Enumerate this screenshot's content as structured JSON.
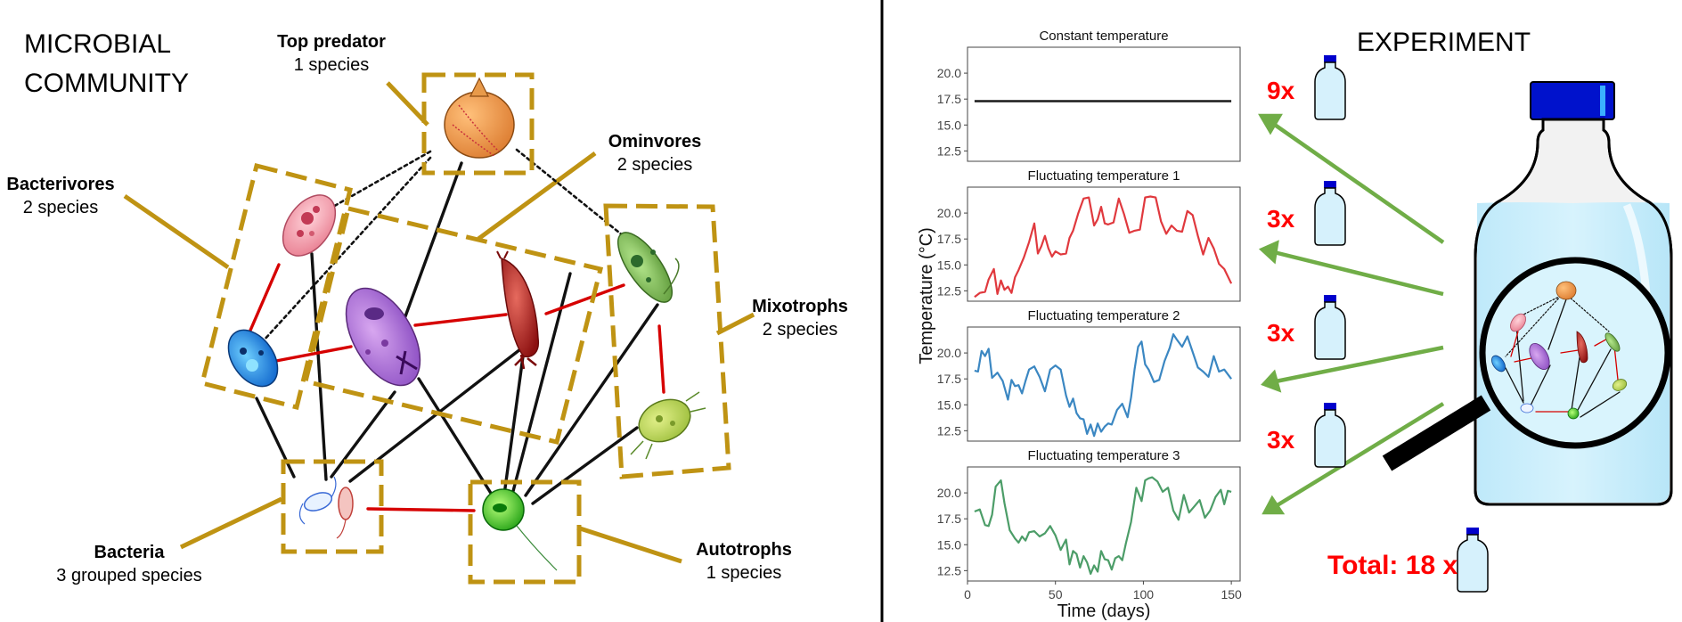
{
  "left": {
    "title_line1": "MICROBIAL",
    "title_line2": "COMMUNITY",
    "groups": {
      "top_predator": {
        "name": "Top predator",
        "count": "1 species"
      },
      "omnivores": {
        "name": "Ominvores",
        "count": "2 species"
      },
      "bacterivores": {
        "name": "Bacterivores",
        "count": "2 species"
      },
      "mixotrophs": {
        "name": "Mixotrophs",
        "count": "2 species"
      },
      "bacteria": {
        "name": "Bacteria",
        "count": "3 grouped species"
      },
      "autotrophs": {
        "name": "Autotrophs",
        "count": "1 species"
      }
    },
    "colors": {
      "group_box": "#bf9313",
      "link_black": "#111111",
      "link_red": "#d60000"
    }
  },
  "right": {
    "title": "EXPERIMENT",
    "replicates": [
      "9x",
      "3x",
      "3x",
      "3x"
    ],
    "total_label": "Total: 18 x",
    "colors": {
      "replicate_text": "#ff0000",
      "arrow": "#70ad47",
      "cap": "#0000cc",
      "bottle_liquid": "#cfeffc"
    }
  },
  "chart_data": {
    "type": "line",
    "ylabel": "Temperature (°C)",
    "xlabel": "Time (days)",
    "xlim": [
      0,
      155
    ],
    "ylim": [
      11.5,
      22.5
    ],
    "xticks": [
      "0",
      "50",
      "100",
      "150"
    ],
    "yticks": [
      "12.5",
      "15.0",
      "17.5",
      "20.0"
    ],
    "series": [
      {
        "name": "Constant temperature",
        "color": "#1a1a1a",
        "x": [
          4,
          150
        ],
        "y": [
          17.3,
          17.3
        ]
      },
      {
        "name": "Fluctuating temperature 1",
        "color": "#e0393e",
        "x": [
          4,
          7,
          10,
          12,
          15,
          17,
          19,
          21,
          23,
          25,
          27,
          29,
          32,
          35,
          38,
          40,
          42,
          44,
          46,
          48,
          50,
          53,
          56,
          58,
          60,
          63,
          66,
          69,
          72,
          74,
          76,
          78,
          80,
          83,
          86,
          89,
          92,
          95,
          98,
          101,
          104,
          107,
          110,
          113,
          116,
          119,
          122,
          125,
          128,
          131,
          134,
          137,
          140,
          143,
          146,
          150
        ],
        "y": [
          11.9,
          12.3,
          12.4,
          13.6,
          14.6,
          12.2,
          13.5,
          12.6,
          12.9,
          12.3,
          13.8,
          14.5,
          15.7,
          17.2,
          19.0,
          16.1,
          16.8,
          17.8,
          16.6,
          15.8,
          16.3,
          16.0,
          16.1,
          17.6,
          18.3,
          20.0,
          21.4,
          21.5,
          18.8,
          19.4,
          20.6,
          19.0,
          18.9,
          19.1,
          21.4,
          19.9,
          18.1,
          18.3,
          18.4,
          21.5,
          21.6,
          21.5,
          19.2,
          18.0,
          18.8,
          18.3,
          18.2,
          20.2,
          19.8,
          17.8,
          16.0,
          17.6,
          16.6,
          15.1,
          14.6,
          13.2
        ]
      },
      {
        "name": "Fluctuating temperature 2",
        "color": "#3b87c2",
        "x": [
          4,
          6,
          8,
          10,
          12,
          14,
          17,
          20,
          23,
          25,
          27,
          29,
          31,
          33,
          35,
          38,
          41,
          44,
          47,
          50,
          53,
          56,
          58,
          60,
          62,
          64,
          66,
          68,
          70,
          72,
          74,
          76,
          78,
          80,
          82,
          85,
          88,
          91,
          93,
          95,
          97,
          99,
          101,
          103,
          106,
          109,
          112,
          115,
          117,
          119,
          122,
          125,
          128,
          131,
          134,
          137,
          140,
          143,
          146,
          150
        ],
        "y": [
          18.3,
          18.2,
          20.2,
          19.7,
          20.4,
          17.6,
          18.1,
          17.3,
          15.5,
          17.4,
          16.8,
          16.9,
          16.1,
          17.3,
          18.4,
          18.7,
          17.7,
          16.3,
          18.4,
          18.8,
          18.4,
          15.9,
          14.8,
          15.6,
          14.2,
          13.7,
          13.6,
          12.2,
          13.1,
          12.0,
          13.2,
          12.4,
          12.9,
          13.2,
          13.1,
          14.5,
          15.1,
          13.8,
          15.7,
          18.4,
          20.6,
          21.1,
          18.9,
          18.4,
          17.2,
          17.4,
          19.2,
          20.5,
          21.8,
          21.3,
          20.6,
          21.6,
          20.1,
          18.6,
          18.2,
          17.7,
          19.7,
          18.2,
          18.4,
          17.5
        ]
      },
      {
        "name": "Fluctuating temperature 3",
        "color": "#4c9d68",
        "x": [
          4,
          7,
          10,
          12,
          14,
          16,
          19,
          21,
          24,
          27,
          29,
          31,
          33,
          35,
          38,
          41,
          44,
          47,
          50,
          53,
          56,
          58,
          60,
          62,
          64,
          66,
          68,
          70,
          72,
          74,
          76,
          78,
          80,
          82,
          84,
          86,
          88,
          90,
          93,
          96,
          99,
          101,
          103,
          105,
          108,
          111,
          114,
          117,
          120,
          123,
          126,
          129,
          132,
          135,
          138,
          141,
          144,
          146,
          148,
          150
        ],
        "y": [
          18.2,
          18.4,
          16.9,
          16.8,
          17.9,
          20.6,
          21.2,
          19.0,
          16.4,
          15.6,
          15.2,
          15.8,
          15.4,
          16.2,
          16.3,
          15.8,
          16.1,
          16.8,
          15.9,
          14.5,
          15.5,
          13.1,
          14.4,
          14.1,
          12.8,
          13.9,
          13.3,
          12.2,
          13.0,
          12.4,
          14.4,
          13.6,
          13.5,
          12.6,
          13.7,
          13.9,
          13.5,
          15.1,
          17.2,
          20.5,
          19.2,
          21.2,
          21.4,
          21.5,
          21.1,
          20.1,
          20.5,
          18.3,
          17.4,
          19.8,
          18.1,
          18.7,
          19.3,
          17.6,
          18.3,
          19.6,
          20.3,
          18.9,
          20.2,
          20.1
        ]
      }
    ]
  }
}
